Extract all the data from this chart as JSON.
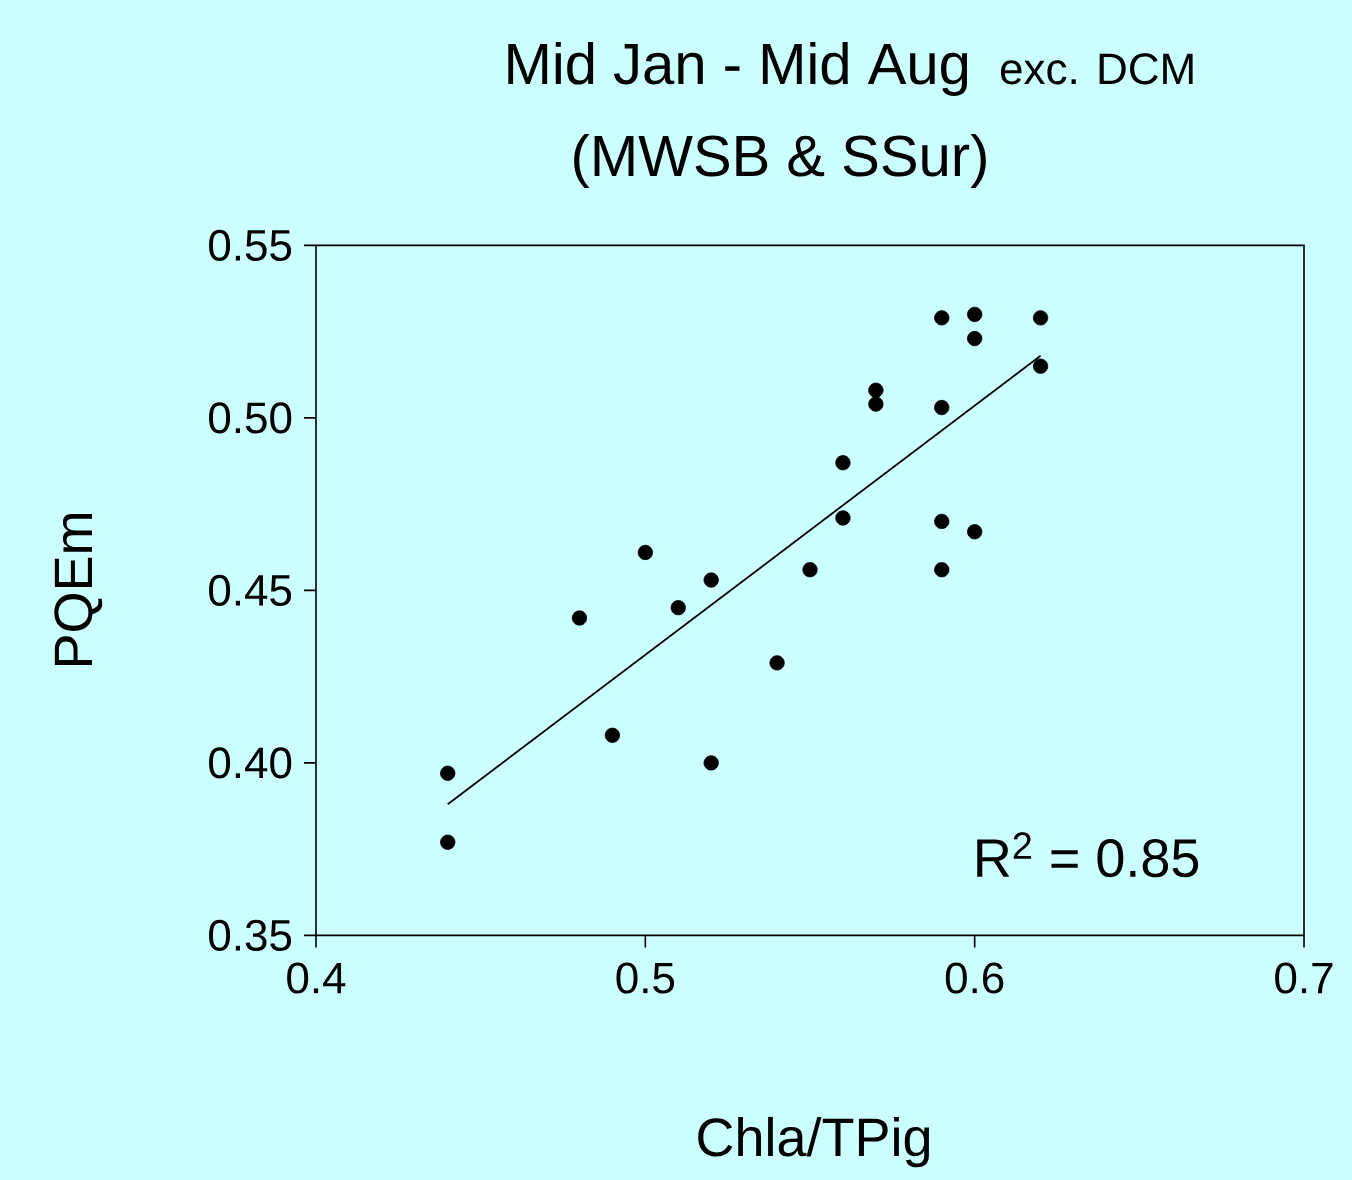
{
  "chart_data": {
    "type": "scatter",
    "title": "Mid Jan - Mid Aug",
    "subtitle": "exc. DCM",
    "xlabel": "Chla/TPig",
    "ylabel": "PQEm",
    "annotations": [
      "(MWSB & SSur)",
      "R$^{2}$ = 0.85"
    ],
    "xlim": [
      0.4,
      0.7
    ],
    "xticks": [
      0.4,
      0.5,
      0.6,
      0.7
    ],
    "ylim": [
      0.35,
      0.55
    ],
    "yticks": [
      {
        "value": 0.35,
        "label": "0.35"
      },
      {
        "value": 0.4,
        "label": "0.40"
      },
      {
        "value": 0.45,
        "label": "0.45"
      },
      {
        "value": 0.5,
        "label": "0.50"
      },
      {
        "value": 0.55,
        "label": "0.55"
      }
    ],
    "grid": false,
    "legend": false,
    "series": [
      {
        "color": "#000000",
        "x": [
          0.44,
          0.44,
          0.48,
          0.49,
          0.5,
          0.51,
          0.52,
          0.52,
          0.54,
          0.55,
          0.56,
          0.56,
          0.57,
          0.57,
          0.59,
          0.59,
          0.59,
          0.59,
          0.6,
          0.6,
          0.6,
          0.62,
          0.62
        ],
        "values": [
          0.397,
          0.377,
          0.442,
          0.408,
          0.461,
          0.445,
          0.453,
          0.4,
          0.429,
          0.456,
          0.471,
          0.487,
          0.508,
          0.504,
          0.529,
          0.503,
          0.47,
          0.456,
          0.53,
          0.523,
          0.467,
          0.529,
          0.515
        ]
      },
      {
        "type": "line",
        "color": "#000000",
        "x": [
          0.44,
          0.62
        ],
        "values": [
          0.388,
          0.518
        ]
      }
    ]
  }
}
